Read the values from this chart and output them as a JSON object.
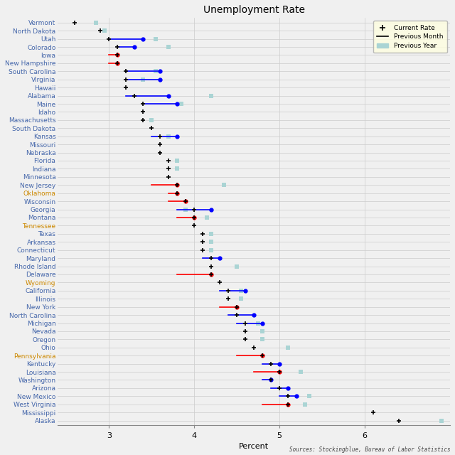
{
  "title": "Unemployment Rate",
  "xlabel": "Percent",
  "source_text": "Sources: Stockingblue, Bureau of Labor Statistics",
  "xlim": [
    2.4,
    7.0
  ],
  "xticks": [
    3.0,
    4.0,
    5.0,
    6.0
  ],
  "states": [
    "Vermont",
    "North Dakota",
    "Utah",
    "Colorado",
    "Iowa",
    "New Hampshire",
    "South Carolina",
    "Virginia",
    "Hawaii",
    "Alabama",
    "Maine",
    "Idaho",
    "Massachusetts",
    "South Dakota",
    "Kansas",
    "Missouri",
    "Nebraska",
    "Florida",
    "Indiana",
    "Minnesota",
    "New Jersey",
    "Oklahoma",
    "Wisconsin",
    "Georgia",
    "Montana",
    "Tennessee",
    "Texas",
    "Arkansas",
    "Connecticut",
    "Maryland",
    "Rhode Island",
    "Delaware",
    "Wyoming",
    "California",
    "Illinois",
    "New York",
    "North Carolina",
    "Michigan",
    "Nevada",
    "Oregon",
    "Ohio",
    "Pennsylvania",
    "Kentucky",
    "Louisiana",
    "Washington",
    "Arizona",
    "New Mexico",
    "West Virginia",
    "Mississippi",
    "Alaska"
  ],
  "label_colors": [
    "blue",
    "blue",
    "blue",
    "blue",
    "blue",
    "blue",
    "blue",
    "blue",
    "blue",
    "blue",
    "blue",
    "blue",
    "blue",
    "blue",
    "blue",
    "blue",
    "blue",
    "blue",
    "blue",
    "blue",
    "blue",
    "orange",
    "blue",
    "blue",
    "blue",
    "orange",
    "blue",
    "blue",
    "blue",
    "blue",
    "blue",
    "blue",
    "orange",
    "blue",
    "blue",
    "blue",
    "blue",
    "blue",
    "blue",
    "blue",
    "blue",
    "orange",
    "blue",
    "blue",
    "blue",
    "blue",
    "blue",
    "blue",
    "blue",
    "blue"
  ],
  "current": [
    2.6,
    2.9,
    3.0,
    3.1,
    3.1,
    3.1,
    3.2,
    3.2,
    3.2,
    3.3,
    3.4,
    3.4,
    3.4,
    3.5,
    3.6,
    3.6,
    3.6,
    3.7,
    3.7,
    3.7,
    3.8,
    3.8,
    3.9,
    4.0,
    4.0,
    4.0,
    4.1,
    4.1,
    4.1,
    4.2,
    4.2,
    4.2,
    4.3,
    4.4,
    4.4,
    4.5,
    4.5,
    4.6,
    4.6,
    4.6,
    4.7,
    4.8,
    4.9,
    5.0,
    4.9,
    5.0,
    5.1,
    5.1,
    6.1,
    6.4
  ],
  "prev_month_start": [
    null,
    null,
    3.0,
    3.1,
    3.0,
    3.0,
    3.2,
    3.2,
    null,
    3.2,
    3.4,
    null,
    null,
    null,
    3.5,
    null,
    null,
    null,
    null,
    null,
    3.5,
    3.7,
    3.7,
    3.8,
    3.8,
    null,
    null,
    null,
    null,
    4.1,
    null,
    3.8,
    null,
    4.3,
    null,
    4.3,
    4.4,
    4.5,
    null,
    null,
    null,
    4.5,
    4.8,
    4.7,
    4.8,
    4.9,
    5.0,
    4.8,
    null,
    null
  ],
  "prev_month_end": [
    null,
    null,
    3.4,
    3.3,
    3.1,
    3.1,
    3.6,
    3.6,
    null,
    3.7,
    3.8,
    null,
    null,
    null,
    3.8,
    null,
    null,
    null,
    null,
    null,
    3.8,
    3.8,
    3.9,
    4.2,
    4.0,
    null,
    null,
    null,
    null,
    4.3,
    null,
    4.2,
    null,
    4.6,
    null,
    4.5,
    4.7,
    4.8,
    null,
    null,
    null,
    4.8,
    5.0,
    5.0,
    4.9,
    5.1,
    5.2,
    5.1,
    null,
    null
  ],
  "prev_month_color": [
    null,
    null,
    "blue",
    "blue",
    "red",
    "red",
    "blue",
    "blue",
    null,
    "blue",
    "blue",
    null,
    null,
    null,
    "blue",
    null,
    null,
    null,
    null,
    null,
    "red",
    "red",
    "red",
    "blue",
    "red",
    null,
    null,
    null,
    null,
    "blue",
    null,
    "red",
    null,
    "blue",
    null,
    "red",
    "blue",
    "blue",
    null,
    null,
    null,
    "red",
    "blue",
    "red",
    "blue",
    "blue",
    "blue",
    "red",
    null,
    null
  ],
  "prev_year": [
    2.85,
    2.95,
    3.55,
    3.7,
    null,
    null,
    3.55,
    3.4,
    null,
    4.2,
    3.85,
    null,
    3.5,
    null,
    3.7,
    null,
    null,
    3.8,
    3.8,
    null,
    4.35,
    null,
    null,
    3.9,
    4.15,
    null,
    4.2,
    4.2,
    4.2,
    null,
    4.5,
    null,
    null,
    4.55,
    4.55,
    null,
    null,
    4.75,
    4.8,
    4.8,
    5.1,
    null,
    null,
    5.25,
    null,
    null,
    5.35,
    5.3,
    null,
    6.9
  ],
  "bg_color": "#f0f0f0",
  "grid_color": "#cccccc",
  "teal_color": "#aad4d4",
  "pink_color": "#f0b8b8",
  "label_blue": "#4466aa",
  "label_orange": "#cc8800"
}
